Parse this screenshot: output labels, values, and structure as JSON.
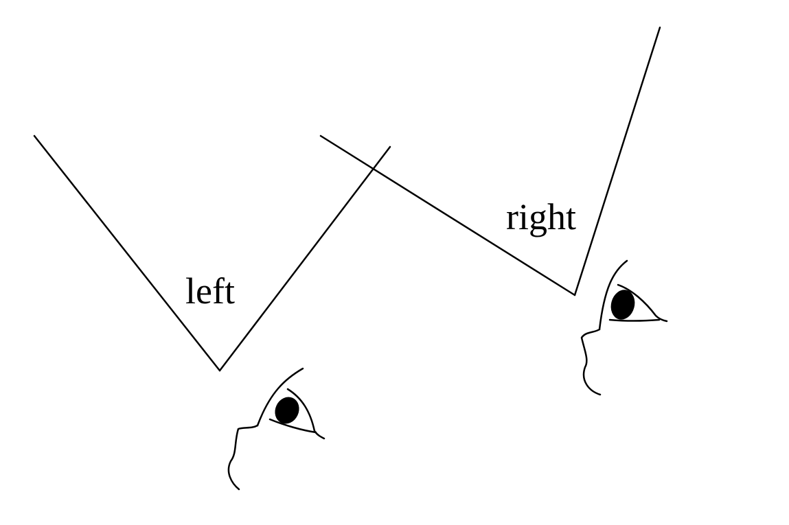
{
  "labels": {
    "left": "left",
    "right": "right"
  },
  "colors": {
    "line": "#000000",
    "background": "#ffffff"
  },
  "icons": {
    "left_viewer": "eye-profile-icon",
    "right_viewer": "eye-profile-icon"
  }
}
